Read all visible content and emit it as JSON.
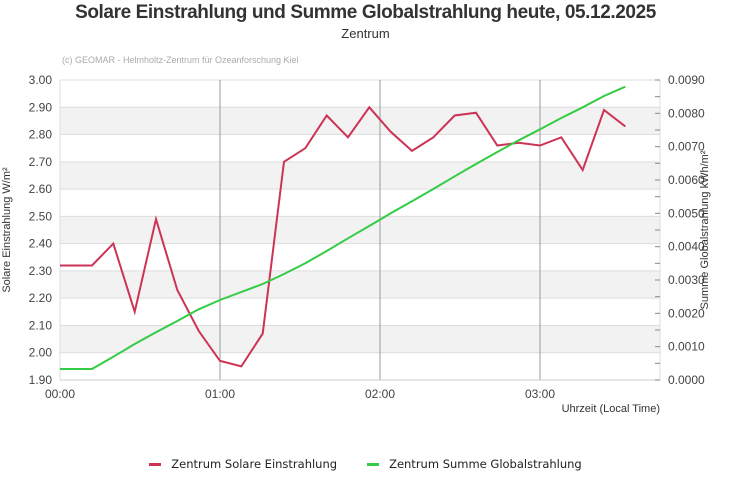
{
  "header": {
    "title": "Solare Einstrahlung und Summe Globalstrahlung heute, 05.12.2025",
    "subtitle": "Zentrum",
    "credit": "(c) GEOMAR - Helmholtz-Zentrum für Ozeanforschung Kiel"
  },
  "legend": {
    "items": [
      {
        "label": "Zentrum Solare Einstrahlung",
        "color": "#cc3355"
      },
      {
        "label": "Zentrum Summe Globalstrahlung",
        "color": "#33cc44"
      }
    ]
  },
  "chart_data": {
    "type": "line",
    "title": "Solare Einstrahlung und Summe Globalstrahlung heute, 05.12.2025",
    "subtitle": "Zentrum",
    "xlabel": "Uhrzeit (Local Time)",
    "ylabel": "Solare Einstrahlung W/m²",
    "y2label": "Summe Globalstrahlung kWh/m²",
    "x_ticks": [
      "00:00",
      "01:00",
      "02:00",
      "03:00"
    ],
    "xlim_minutes": [
      0,
      225
    ],
    "ylim": [
      1.9,
      3.0
    ],
    "y_ticks": [
      "1.90",
      "2.00",
      "2.10",
      "2.20",
      "2.30",
      "2.40",
      "2.50",
      "2.60",
      "2.70",
      "2.80",
      "2.90",
      "3.00"
    ],
    "y2lim": [
      0.0,
      0.009
    ],
    "y2_ticks": [
      "0.0000",
      "0.0010",
      "0.0020",
      "0.0030",
      "0.0040",
      "0.0050",
      "0.0060",
      "0.0070",
      "0.0080",
      "0.0090"
    ],
    "grid": true,
    "legend_position": "bottom",
    "x_minutes": [
      0,
      12,
      20,
      28,
      36,
      44,
      52,
      60,
      68,
      76,
      84,
      92,
      100,
      108,
      116,
      124,
      132,
      140,
      148,
      156,
      164,
      172,
      180,
      188,
      196,
      204,
      212
    ],
    "series": [
      {
        "name": "Zentrum Solare Einstrahlung",
        "axis": "left",
        "color": "#cc3355",
        "values": [
          2.32,
          2.32,
          2.4,
          2.15,
          2.49,
          2.23,
          2.08,
          1.97,
          1.95,
          2.07,
          2.7,
          2.75,
          2.87,
          2.79,
          2.9,
          2.81,
          2.74,
          2.79,
          2.87,
          2.88,
          2.76,
          2.77,
          2.76,
          2.79,
          2.67,
          2.89,
          2.83
        ]
      },
      {
        "name": "Zentrum Summe Globalstrahlung",
        "axis": "right",
        "color": "#33cc44",
        "values": [
          0.00033,
          0.00033,
          0.0007,
          0.00108,
          0.00143,
          0.00177,
          0.00212,
          0.0024,
          0.00264,
          0.00288,
          0.00318,
          0.0035,
          0.00387,
          0.00425,
          0.00462,
          0.005,
          0.00536,
          0.00573,
          0.00611,
          0.00648,
          0.00684,
          0.00719,
          0.00752,
          0.00786,
          0.00818,
          0.00852,
          0.0088
        ]
      }
    ]
  }
}
